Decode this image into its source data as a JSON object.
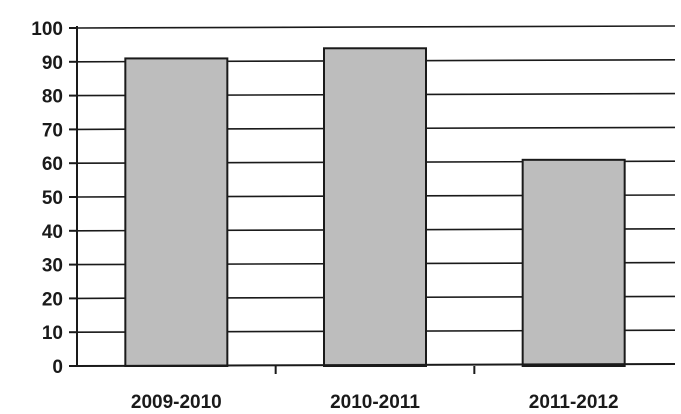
{
  "chart_data": {
    "type": "bar",
    "categories": [
      "2009-2010",
      "2010-2011",
      "2011-2012"
    ],
    "values": [
      91,
      94,
      61
    ],
    "title": "",
    "xlabel": "",
    "ylabel": "",
    "ylim": [
      0,
      100
    ],
    "yticks": [
      0,
      10,
      20,
      30,
      40,
      50,
      60,
      70,
      80,
      90,
      100
    ],
    "grid": true,
    "legend": "none",
    "bar_color": "#bdbdbd",
    "gridline_color": "#1a1a1a"
  }
}
